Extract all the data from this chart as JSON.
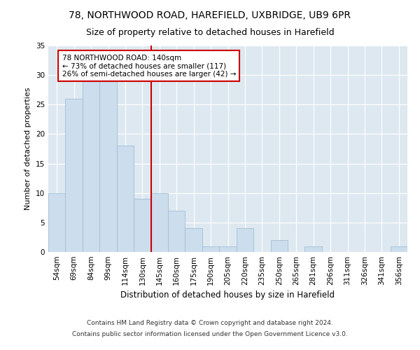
{
  "title1": "78, NORTHWOOD ROAD, HAREFIELD, UXBRIDGE, UB9 6PR",
  "title2": "Size of property relative to detached houses in Harefield",
  "xlabel": "Distribution of detached houses by size in Harefield",
  "ylabel": "Number of detached properties",
  "categories": [
    "54sqm",
    "69sqm",
    "84sqm",
    "99sqm",
    "114sqm",
    "130sqm",
    "145sqm",
    "160sqm",
    "175sqm",
    "190sqm",
    "205sqm",
    "220sqm",
    "235sqm",
    "250sqm",
    "265sqm",
    "281sqm",
    "296sqm",
    "311sqm",
    "326sqm",
    "341sqm",
    "356sqm"
  ],
  "values": [
    10,
    26,
    29,
    29,
    18,
    9,
    10,
    7,
    4,
    1,
    1,
    4,
    0,
    2,
    0,
    1,
    0,
    0,
    0,
    0,
    1
  ],
  "bar_color": "#ccdded",
  "bar_edge_color": "#a0bfd8",
  "vline_x": 5.5,
  "annotation_text": "78 NORTHWOOD ROAD: 140sqm\n← 73% of detached houses are smaller (117)\n26% of semi-detached houses are larger (42) →",
  "annotation_box_color": "#ffffff",
  "annotation_border_color": "#cc0000",
  "vline_color": "#cc0000",
  "ylim": [
    0,
    35
  ],
  "yticks": [
    0,
    5,
    10,
    15,
    20,
    25,
    30,
    35
  ],
  "bg_color": "#dde8f0",
  "footer_line1": "Contains HM Land Registry data © Crown copyright and database right 2024.",
  "footer_line2": "Contains public sector information licensed under the Open Government Licence v3.0.",
  "title1_fontsize": 10,
  "title2_fontsize": 9,
  "xlabel_fontsize": 8.5,
  "ylabel_fontsize": 8,
  "tick_fontsize": 7.5,
  "footer_fontsize": 6.5,
  "ann_fontsize": 7.5
}
